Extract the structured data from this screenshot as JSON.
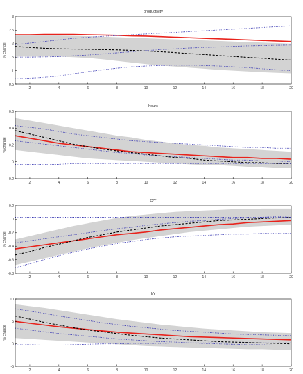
{
  "colors": {
    "band": "#d3d3d3",
    "median": "#e8231c",
    "dashed": "#000000",
    "dotted": "#3b3bb3",
    "axis": "#000000"
  },
  "chart_data": [
    {
      "type": "line",
      "title": "productivity",
      "ylabel": "% change",
      "xlim": [
        1,
        20
      ],
      "ylim": [
        0.5,
        3
      ],
      "xticks": [
        "2",
        "4",
        "6",
        "8",
        "10",
        "12",
        "14",
        "16",
        "18",
        "20"
      ],
      "yticks": [
        "0.5",
        "1",
        "1.5",
        "2",
        "2.5",
        "3"
      ],
      "x": [
        1,
        2,
        3,
        4,
        5,
        6,
        7,
        8,
        9,
        10,
        11,
        12,
        13,
        14,
        15,
        16,
        17,
        18,
        19,
        20
      ],
      "band": {
        "lower": [
          1.52,
          1.52,
          1.52,
          1.52,
          1.5,
          1.47,
          1.42,
          1.36,
          1.3,
          1.24,
          1.19,
          1.15,
          1.11,
          1.07,
          1.03,
          1.0,
          0.97,
          0.94,
          0.92,
          0.9
        ],
        "upper": [
          2.3,
          2.3,
          2.3,
          2.3,
          2.29,
          2.28,
          2.26,
          2.24,
          2.22,
          2.2,
          2.18,
          2.16,
          2.14,
          2.12,
          2.1,
          2.08,
          2.06,
          2.04,
          2.02,
          2.0
        ]
      },
      "series": [
        {
          "style": "solid",
          "values": [
            2.33,
            2.33,
            2.34,
            2.34,
            2.34,
            2.33,
            2.32,
            2.31,
            2.29,
            2.28,
            2.26,
            2.24,
            2.22,
            2.2,
            2.18,
            2.16,
            2.14,
            2.12,
            2.1,
            2.08
          ]
        },
        {
          "style": "dashed",
          "values": [
            1.9,
            1.86,
            1.83,
            1.81,
            1.8,
            1.79,
            1.78,
            1.77,
            1.75,
            1.73,
            1.7,
            1.67,
            1.63,
            1.6,
            1.56,
            1.53,
            1.49,
            1.46,
            1.42,
            1.39
          ]
        },
        {
          "style": "dotted",
          "values": [
            0.7,
            0.72,
            0.75,
            0.8,
            0.88,
            0.96,
            1.03,
            1.09,
            1.14,
            1.17,
            1.19,
            1.2,
            1.2,
            1.19,
            1.17,
            1.14,
            1.11,
            1.07,
            1.03,
            1.0
          ]
        },
        {
          "style": "dotted",
          "values": [
            1.96,
            2.02,
            2.08,
            2.14,
            2.2,
            2.24,
            2.27,
            2.3,
            2.33,
            2.36,
            2.39,
            2.42,
            2.45,
            2.48,
            2.51,
            2.54,
            2.57,
            2.6,
            2.63,
            2.66
          ]
        },
        {
          "style": "dotted",
          "values": [
            1.5,
            1.5,
            1.51,
            1.52,
            1.55,
            1.58,
            1.62,
            1.66,
            1.7,
            1.74,
            1.78,
            1.81,
            1.84,
            1.86,
            1.88,
            1.9,
            1.92,
            1.93,
            1.94,
            1.95
          ]
        }
      ]
    },
    {
      "type": "line",
      "title": "hours",
      "ylabel": "% change",
      "xlim": [
        1,
        20
      ],
      "ylim": [
        -0.2,
        0.6
      ],
      "xticks": [
        "2",
        "4",
        "6",
        "8",
        "10",
        "12",
        "14",
        "16",
        "18",
        "20"
      ],
      "yticks": [
        "-0.2",
        "0",
        "0.2",
        "0.4",
        "0.6"
      ],
      "x": [
        1,
        2,
        3,
        4,
        5,
        6,
        7,
        8,
        9,
        10,
        11,
        12,
        13,
        14,
        15,
        16,
        17,
        18,
        19,
        20
      ],
      "band": {
        "lower": [
          0.14,
          0.12,
          0.1,
          0.08,
          0.06,
          0.04,
          0.03,
          0.02,
          0.01,
          0.0,
          -0.01,
          -0.02,
          -0.03,
          -0.04,
          -0.04,
          -0.05,
          -0.06,
          -0.06,
          -0.07,
          -0.07
        ],
        "upper": [
          0.52,
          0.49,
          0.46,
          0.43,
          0.4,
          0.37,
          0.34,
          0.31,
          0.29,
          0.26,
          0.24,
          0.22,
          0.2,
          0.19,
          0.17,
          0.16,
          0.15,
          0.14,
          0.13,
          0.12
        ]
      },
      "series": [
        {
          "style": "solid",
          "values": [
            0.31,
            0.28,
            0.25,
            0.22,
            0.2,
            0.18,
            0.16,
            0.14,
            0.12,
            0.11,
            0.1,
            0.09,
            0.08,
            0.07,
            0.06,
            0.05,
            0.05,
            0.04,
            0.04,
            0.03
          ]
        },
        {
          "style": "dashed",
          "values": [
            0.37,
            0.33,
            0.29,
            0.25,
            0.21,
            0.18,
            0.15,
            0.13,
            0.11,
            0.09,
            0.07,
            0.05,
            0.04,
            0.02,
            0.01,
            0.0,
            -0.01,
            -0.01,
            -0.02,
            -0.02
          ]
        },
        {
          "style": "dotted",
          "values": [
            -0.03,
            -0.03,
            -0.03,
            -0.03,
            -0.02,
            -0.02,
            -0.02,
            -0.02,
            -0.02,
            -0.02,
            -0.02,
            -0.02,
            -0.02,
            -0.02,
            -0.02,
            -0.02,
            -0.02,
            -0.02,
            -0.02,
            -0.02
          ]
        },
        {
          "style": "dotted",
          "values": [
            0.43,
            0.41,
            0.39,
            0.36,
            0.33,
            0.31,
            0.29,
            0.27,
            0.25,
            0.24,
            0.23,
            0.22,
            0.21,
            0.2,
            0.19,
            0.18,
            0.17,
            0.17,
            0.16,
            0.16
          ]
        },
        {
          "style": "dotted",
          "values": [
            0.25,
            0.23,
            0.21,
            0.19,
            0.17,
            0.15,
            0.13,
            0.11,
            0.1,
            0.08,
            0.07,
            0.06,
            0.05,
            0.04,
            0.03,
            0.02,
            0.02,
            0.01,
            0.01,
            0.0
          ]
        }
      ]
    },
    {
      "type": "line",
      "title": "C/Y",
      "ylabel": "% change",
      "xlim": [
        1,
        20
      ],
      "ylim": [
        -0.8,
        0.2
      ],
      "xticks": [
        "2",
        "4",
        "6",
        "8",
        "10",
        "12",
        "14",
        "16",
        "18",
        "20"
      ],
      "yticks": [
        "-0.8",
        "-0.6",
        "-0.4",
        "-0.2",
        "0",
        "0.2"
      ],
      "x": [
        1,
        2,
        3,
        4,
        5,
        6,
        7,
        8,
        9,
        10,
        11,
        12,
        13,
        14,
        15,
        16,
        17,
        18,
        19,
        20
      ],
      "band": {
        "lower": [
          -0.68,
          -0.63,
          -0.58,
          -0.53,
          -0.48,
          -0.43,
          -0.39,
          -0.35,
          -0.31,
          -0.28,
          -0.25,
          -0.22,
          -0.19,
          -0.17,
          -0.15,
          -0.13,
          -0.11,
          -0.1,
          -0.09,
          -0.08
        ],
        "upper": [
          -0.3,
          -0.25,
          -0.2,
          -0.15,
          -0.1,
          -0.06,
          -0.02,
          0.02,
          0.05,
          0.07,
          0.09,
          0.11,
          0.12,
          0.13,
          0.14,
          0.15,
          0.15,
          0.16,
          0.16,
          0.16
        ]
      },
      "series": [
        {
          "style": "solid",
          "values": [
            -0.44,
            -0.41,
            -0.38,
            -0.35,
            -0.32,
            -0.29,
            -0.26,
            -0.23,
            -0.21,
            -0.19,
            -0.16,
            -0.14,
            -0.12,
            -0.1,
            -0.08,
            -0.07,
            -0.05,
            -0.04,
            -0.03,
            -0.02
          ]
        },
        {
          "style": "dashed",
          "values": [
            -0.53,
            -0.48,
            -0.42,
            -0.37,
            -0.32,
            -0.27,
            -0.23,
            -0.19,
            -0.16,
            -0.13,
            -0.1,
            -0.08,
            -0.06,
            -0.04,
            -0.02,
            -0.01,
            0.0,
            0.01,
            0.02,
            0.03
          ]
        },
        {
          "style": "dotted",
          "values": [
            0.03,
            0.03,
            0.03,
            0.03,
            0.03,
            0.03,
            0.03,
            0.03,
            0.03,
            0.03,
            0.03,
            0.03,
            0.03,
            0.03,
            0.03,
            0.03,
            0.03,
            0.03,
            0.03,
            0.03
          ]
        },
        {
          "style": "dotted",
          "values": [
            -0.72,
            -0.66,
            -0.6,
            -0.54,
            -0.49,
            -0.44,
            -0.4,
            -0.36,
            -0.33,
            -0.3,
            -0.28,
            -0.26,
            -0.25,
            -0.24,
            -0.23,
            -0.22,
            -0.22,
            -0.21,
            -0.21,
            -0.21
          ]
        },
        {
          "style": "dotted",
          "values": [
            -0.35,
            -0.32,
            -0.29,
            -0.26,
            -0.23,
            -0.2,
            -0.17,
            -0.14,
            -0.12,
            -0.09,
            -0.07,
            -0.05,
            -0.03,
            -0.02,
            0.0,
            0.01,
            0.02,
            0.03,
            0.04,
            0.05
          ]
        }
      ]
    },
    {
      "type": "line",
      "title": "I/Y",
      "ylabel": "% change",
      "xlim": [
        1,
        20
      ],
      "ylim": [
        -5,
        10
      ],
      "xticks": [
        "2",
        "4",
        "6",
        "8",
        "10",
        "12",
        "14",
        "16",
        "18",
        "20"
      ],
      "yticks": [
        "-5",
        "0",
        "5",
        "10"
      ],
      "x": [
        1,
        2,
        3,
        4,
        5,
        6,
        7,
        8,
        9,
        10,
        11,
        12,
        13,
        14,
        15,
        16,
        17,
        18,
        19,
        20
      ],
      "band": {
        "lower": [
          1.3,
          1.1,
          0.9,
          0.7,
          0.5,
          0.3,
          0.1,
          -0.1,
          -0.3,
          -0.5,
          -0.6,
          -0.7,
          -0.8,
          -0.9,
          -1.0,
          -1.1,
          -1.2,
          -1.2,
          -1.3,
          -1.3
        ],
        "upper": [
          8.8,
          8.4,
          8.0,
          7.5,
          7.0,
          6.5,
          6.0,
          5.5,
          5.1,
          4.7,
          4.3,
          4.0,
          3.7,
          3.4,
          3.2,
          3.0,
          2.8,
          2.6,
          2.5,
          2.4
        ]
      },
      "series": [
        {
          "style": "solid",
          "values": [
            5.0,
            4.6,
            4.2,
            3.8,
            3.5,
            3.2,
            2.9,
            2.6,
            2.4,
            2.2,
            2.0,
            1.8,
            1.6,
            1.5,
            1.4,
            1.3,
            1.2,
            1.1,
            1.0,
            0.9
          ]
        },
        {
          "style": "dashed",
          "values": [
            6.2,
            5.5,
            4.8,
            4.2,
            3.6,
            3.1,
            2.7,
            2.3,
            1.9,
            1.6,
            1.3,
            1.1,
            0.9,
            0.7,
            0.5,
            0.4,
            0.3,
            0.2,
            0.1,
            0.0
          ]
        },
        {
          "style": "dotted",
          "values": [
            -0.2,
            -0.2,
            -0.3,
            -0.3,
            -0.2,
            -0.1,
            0.0,
            0.0,
            0.1,
            0.1,
            0.1,
            0.2,
            0.2,
            0.2,
            0.2,
            0.2,
            0.2,
            0.2,
            0.2,
            0.2
          ]
        },
        {
          "style": "dotted",
          "values": [
            7.8,
            7.3,
            6.8,
            6.2,
            5.7,
            5.2,
            4.7,
            4.3,
            3.9,
            3.6,
            3.3,
            3.0,
            2.8,
            2.6,
            2.4,
            2.2,
            2.1,
            2.0,
            1.9,
            1.8
          ]
        },
        {
          "style": "dotted",
          "values": [
            3.5,
            3.1,
            2.7,
            2.3,
            2.0,
            1.7,
            1.4,
            1.1,
            0.9,
            0.7,
            0.5,
            0.4,
            0.2,
            0.1,
            0.0,
            -0.1,
            -0.2,
            -0.2,
            -0.3,
            -0.3
          ]
        }
      ]
    }
  ]
}
